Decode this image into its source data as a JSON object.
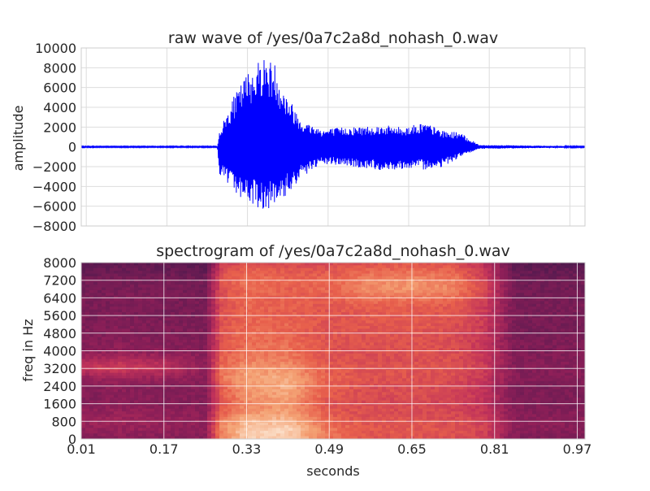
{
  "chart_data": [
    {
      "type": "line",
      "title": "raw wave of /yes/0a7c2a8d_nohash_0.wav",
      "xlabel": "",
      "ylabel": "amplitude",
      "xlim": [
        0.0,
        1.0
      ],
      "ylim": [
        -8000,
        10000
      ],
      "grid": true,
      "line_color": "#0000ff",
      "yticks": [
        -8000,
        -6000,
        -4000,
        -2000,
        0,
        2000,
        4000,
        6000,
        8000,
        10000
      ],
      "ytick_labels": [
        "−8000",
        "−6000",
        "−4000",
        "−2000",
        "0",
        "2000",
        "4000",
        "6000",
        "8000",
        "10000"
      ],
      "xticks": [
        0.01,
        0.17,
        0.33,
        0.49,
        0.65,
        0.81,
        0.97
      ],
      "series": [
        {
          "x": [
            0.0,
            0.27,
            0.275,
            0.3,
            0.33,
            0.36,
            0.385,
            0.4,
            0.44,
            0.48,
            0.52,
            0.56,
            0.6,
            0.64,
            0.68,
            0.72,
            0.75,
            0.79,
            1.0
          ],
          "upper": [
            60,
            60,
            1700,
            4800,
            7600,
            9300,
            8500,
            6000,
            2600,
            1800,
            2000,
            2100,
            2200,
            2000,
            2500,
            1600,
            1500,
            200,
            60
          ],
          "lower": [
            -60,
            -60,
            -2800,
            -4500,
            -5600,
            -6400,
            -6000,
            -5400,
            -3000,
            -1800,
            -1900,
            -2200,
            -2400,
            -2200,
            -2300,
            -2000,
            -1100,
            -200,
            -60
          ]
        }
      ]
    },
    {
      "type": "heatmap",
      "title": "spectrogram of /yes/0a7c2a8d_nohash_0.wav",
      "xlabel": "seconds",
      "ylabel": "freq in Hz",
      "xlim": [
        0.01,
        0.985
      ],
      "ylim": [
        0,
        8000
      ],
      "grid": true,
      "colormap": [
        "#2d1a3e",
        "#5a1a50",
        "#8e1f58",
        "#c1325a",
        "#e8604c",
        "#f4a274",
        "#fbdcc5"
      ],
      "xticks": [
        0.01,
        0.17,
        0.33,
        0.49,
        0.65,
        0.81,
        0.97
      ],
      "xtick_labels": [
        "0.01",
        "0.17",
        "0.33",
        "0.49",
        "0.65",
        "0.81",
        "0.97"
      ],
      "yticks": [
        0,
        800,
        1600,
        2400,
        3200,
        4000,
        4800,
        5600,
        6400,
        7200,
        8000
      ],
      "ytick_labels": [
        "0",
        "800",
        "1600",
        "2400",
        "3200",
        "4000",
        "4800",
        "5600",
        "6400",
        "7200",
        "8000"
      ],
      "x": [
        0.01,
        0.08,
        0.17,
        0.25,
        0.28,
        0.33,
        0.41,
        0.49,
        0.57,
        0.65,
        0.73,
        0.79,
        0.85,
        0.92,
        0.985
      ],
      "y": [
        0,
        400,
        800,
        1200,
        1600,
        2000,
        2400,
        2800,
        3200,
        3600,
        4000,
        4400,
        4800,
        5200,
        5600,
        6000,
        6400,
        6800,
        7200,
        7600,
        8000
      ],
      "z": [
        [
          0.28,
          0.3,
          0.3,
          0.3,
          0.72,
          0.95,
          0.96,
          0.7,
          0.62,
          0.62,
          0.6,
          0.55,
          0.28,
          0.28,
          0.28
        ],
        [
          0.34,
          0.36,
          0.34,
          0.34,
          0.76,
          0.96,
          0.98,
          0.72,
          0.64,
          0.64,
          0.62,
          0.56,
          0.32,
          0.32,
          0.3
        ],
        [
          0.36,
          0.38,
          0.36,
          0.34,
          0.74,
          0.9,
          0.9,
          0.68,
          0.62,
          0.62,
          0.6,
          0.55,
          0.32,
          0.32,
          0.32
        ],
        [
          0.34,
          0.36,
          0.34,
          0.32,
          0.66,
          0.8,
          0.84,
          0.64,
          0.6,
          0.6,
          0.58,
          0.52,
          0.3,
          0.3,
          0.3
        ],
        [
          0.3,
          0.32,
          0.3,
          0.3,
          0.62,
          0.76,
          0.8,
          0.62,
          0.58,
          0.58,
          0.56,
          0.5,
          0.28,
          0.28,
          0.28
        ],
        [
          0.3,
          0.32,
          0.3,
          0.3,
          0.64,
          0.8,
          0.84,
          0.64,
          0.6,
          0.6,
          0.58,
          0.5,
          0.28,
          0.28,
          0.28
        ],
        [
          0.3,
          0.32,
          0.3,
          0.3,
          0.66,
          0.82,
          0.86,
          0.66,
          0.6,
          0.6,
          0.58,
          0.5,
          0.28,
          0.28,
          0.28
        ],
        [
          0.36,
          0.4,
          0.38,
          0.32,
          0.72,
          0.84,
          0.86,
          0.66,
          0.62,
          0.62,
          0.6,
          0.52,
          0.3,
          0.3,
          0.3
        ],
        [
          0.5,
          0.56,
          0.5,
          0.34,
          0.7,
          0.8,
          0.8,
          0.64,
          0.62,
          0.62,
          0.62,
          0.54,
          0.3,
          0.3,
          0.3
        ],
        [
          0.4,
          0.46,
          0.42,
          0.32,
          0.66,
          0.74,
          0.74,
          0.62,
          0.6,
          0.6,
          0.6,
          0.52,
          0.3,
          0.3,
          0.3
        ],
        [
          0.32,
          0.34,
          0.32,
          0.3,
          0.64,
          0.72,
          0.72,
          0.62,
          0.6,
          0.62,
          0.6,
          0.52,
          0.28,
          0.28,
          0.28
        ],
        [
          0.3,
          0.32,
          0.3,
          0.28,
          0.62,
          0.7,
          0.7,
          0.62,
          0.62,
          0.62,
          0.6,
          0.52,
          0.28,
          0.28,
          0.28
        ],
        [
          0.28,
          0.3,
          0.28,
          0.28,
          0.62,
          0.7,
          0.68,
          0.62,
          0.62,
          0.62,
          0.6,
          0.52,
          0.26,
          0.26,
          0.26
        ],
        [
          0.28,
          0.3,
          0.28,
          0.28,
          0.62,
          0.68,
          0.68,
          0.62,
          0.64,
          0.64,
          0.62,
          0.54,
          0.26,
          0.26,
          0.26
        ],
        [
          0.26,
          0.28,
          0.26,
          0.26,
          0.6,
          0.68,
          0.66,
          0.62,
          0.64,
          0.64,
          0.62,
          0.54,
          0.26,
          0.26,
          0.26
        ],
        [
          0.26,
          0.28,
          0.26,
          0.26,
          0.6,
          0.68,
          0.66,
          0.64,
          0.66,
          0.66,
          0.64,
          0.54,
          0.26,
          0.26,
          0.26
        ],
        [
          0.26,
          0.28,
          0.28,
          0.26,
          0.6,
          0.7,
          0.66,
          0.66,
          0.72,
          0.72,
          0.7,
          0.56,
          0.26,
          0.26,
          0.26
        ],
        [
          0.24,
          0.26,
          0.26,
          0.24,
          0.6,
          0.7,
          0.66,
          0.68,
          0.78,
          0.8,
          0.76,
          0.58,
          0.24,
          0.24,
          0.24
        ],
        [
          0.24,
          0.26,
          0.26,
          0.24,
          0.62,
          0.72,
          0.68,
          0.68,
          0.76,
          0.78,
          0.74,
          0.56,
          0.24,
          0.24,
          0.24
        ],
        [
          0.2,
          0.22,
          0.22,
          0.2,
          0.58,
          0.68,
          0.64,
          0.64,
          0.68,
          0.7,
          0.68,
          0.52,
          0.2,
          0.2,
          0.2
        ],
        [
          0.16,
          0.18,
          0.18,
          0.16,
          0.52,
          0.62,
          0.58,
          0.58,
          0.62,
          0.62,
          0.6,
          0.48,
          0.16,
          0.16,
          0.14
        ]
      ]
    }
  ]
}
